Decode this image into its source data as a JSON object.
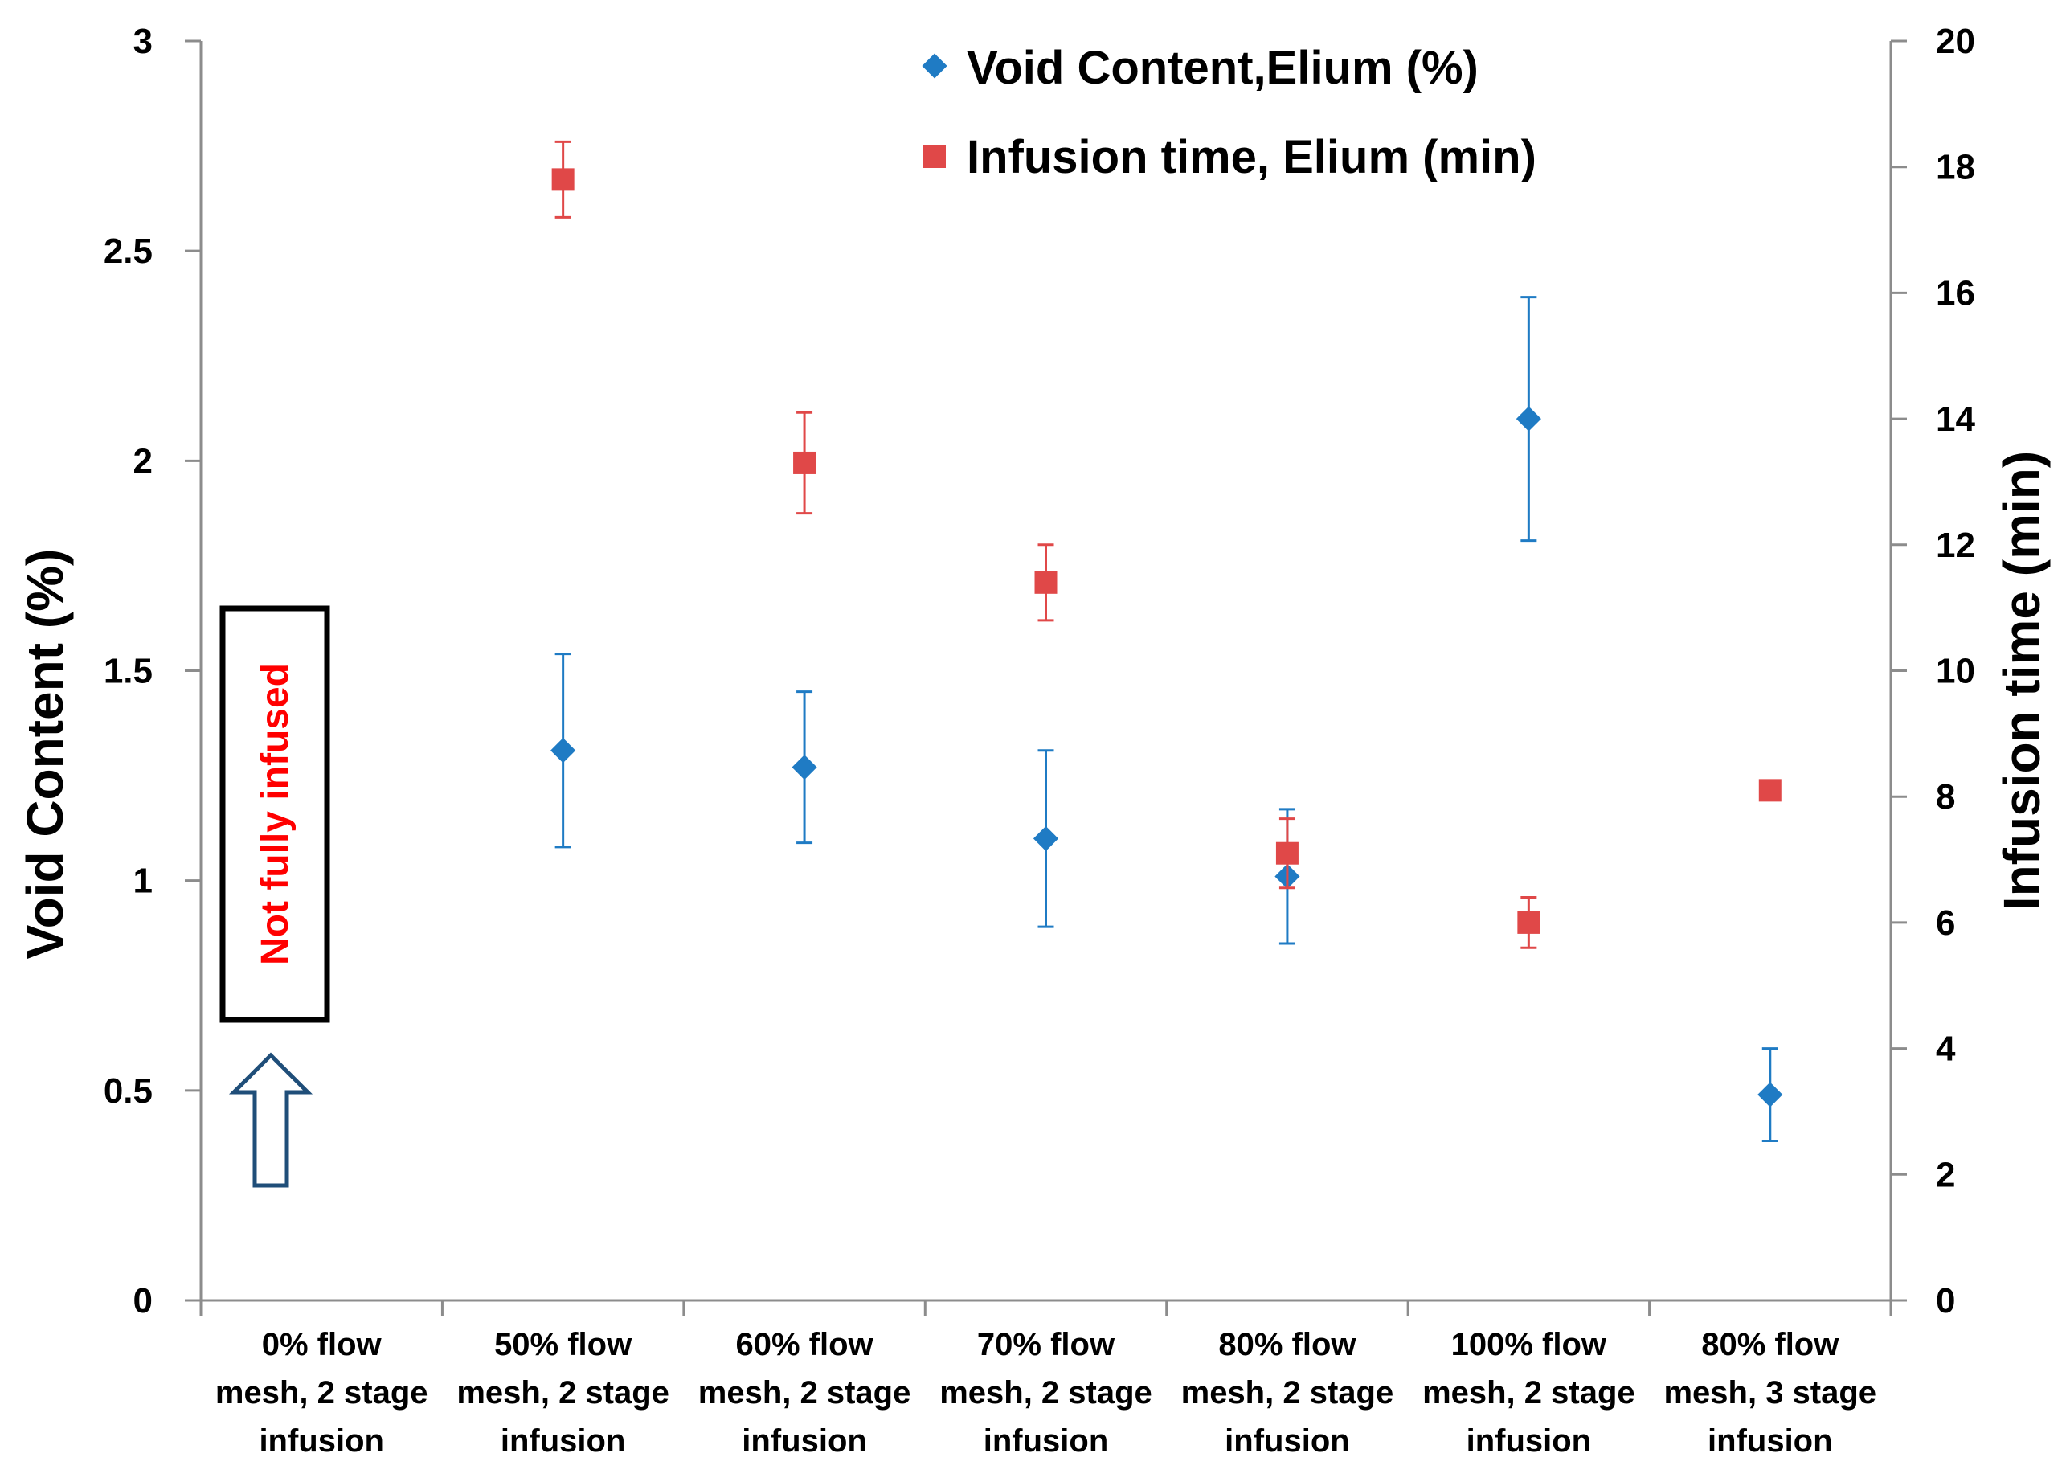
{
  "chart_data": {
    "type": "scatter",
    "categories": [
      [
        "0% flow",
        "mesh, 2 stage",
        "infusion"
      ],
      [
        "50% flow",
        "mesh, 2 stage",
        "infusion"
      ],
      [
        "60% flow",
        "mesh, 2 stage",
        "infusion"
      ],
      [
        "70% flow",
        "mesh, 2 stage",
        "infusion"
      ],
      [
        "80% flow",
        "mesh, 2 stage",
        "infusion"
      ],
      [
        "100% flow",
        "mesh, 2 stage",
        "infusion"
      ],
      [
        "80% flow",
        "mesh, 3 stage",
        "infusion"
      ]
    ],
    "y_left": {
      "label": "Void Content (%)",
      "range": [
        0,
        3
      ],
      "ticks": [
        "0",
        "0.5",
        "1",
        "1.5",
        "2",
        "2.5",
        "3"
      ],
      "tick_values": [
        0,
        0.5,
        1,
        1.5,
        2,
        2.5,
        3
      ]
    },
    "y_right": {
      "label": "Infusion time (min)",
      "range": [
        0,
        20
      ],
      "ticks": [
        "0",
        "2",
        "4",
        "6",
        "8",
        "10",
        "12",
        "14",
        "16",
        "18",
        "20"
      ],
      "tick_values": [
        0,
        2,
        4,
        6,
        8,
        10,
        12,
        14,
        16,
        18,
        20
      ]
    },
    "series": [
      {
        "name": "Void Content,Elium (%)",
        "axis": "left",
        "marker": "diamond",
        "color": "#1f7bc4",
        "values": [
          null,
          1.31,
          1.27,
          1.1,
          1.01,
          2.1,
          0.49
        ],
        "error": [
          null,
          0.23,
          0.18,
          0.21,
          0.16,
          0.29,
          0.11
        ]
      },
      {
        "name": "Infusion time, Elium (min)",
        "axis": "right",
        "marker": "square",
        "color": "#e04848",
        "values": [
          null,
          17.8,
          13.3,
          11.4,
          7.1,
          6.0,
          8.1
        ],
        "error": [
          null,
          0.6,
          0.8,
          0.6,
          0.55,
          0.4,
          null
        ]
      }
    ],
    "annotation": {
      "text": "Not fully infused",
      "color": "#ff0000",
      "category_index": 0
    },
    "legend_position": "top-center",
    "grid": false
  }
}
